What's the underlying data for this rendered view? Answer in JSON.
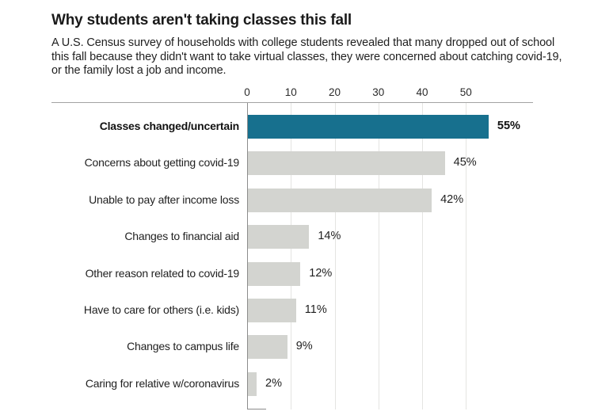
{
  "header": {
    "title": "Why students aren't taking classes this fall",
    "subtitle": "A U.S. Census survey of households with college students revealed that many dropped out of school this fall because they didn't want to take virtual classes, they were concerned about catching covid-19, or the family lost a job and income."
  },
  "chart_data": {
    "type": "bar",
    "orientation": "horizontal",
    "title": "Why students aren't taking classes this fall",
    "categories": [
      "Classes changed/uncertain",
      "Concerns about getting covid-19",
      "Unable to pay after income loss",
      "Changes to financial aid",
      "Other reason related to covid-19",
      "Have to care for others (i.e. kids)",
      "Changes to campus life",
      "Caring for relative w/coronavirus"
    ],
    "values": [
      55,
      45,
      42,
      14,
      12,
      11,
      9,
      2
    ],
    "value_labels": [
      "55%",
      "45%",
      "42%",
      "14%",
      "12%",
      "11%",
      "9%",
      "2%"
    ],
    "x_ticks": [
      0,
      10,
      20,
      30,
      40,
      50
    ],
    "xlim": [
      0,
      65
    ],
    "grid": "vertical",
    "legend": "none",
    "highlight_index": 0,
    "colors": {
      "highlight_bar": "#17708e",
      "bar": "#d3d4d0",
      "gridline": "#e4e4e2",
      "axis_line": "#8c8c8c",
      "top_rule": "#a3a3a3"
    }
  }
}
